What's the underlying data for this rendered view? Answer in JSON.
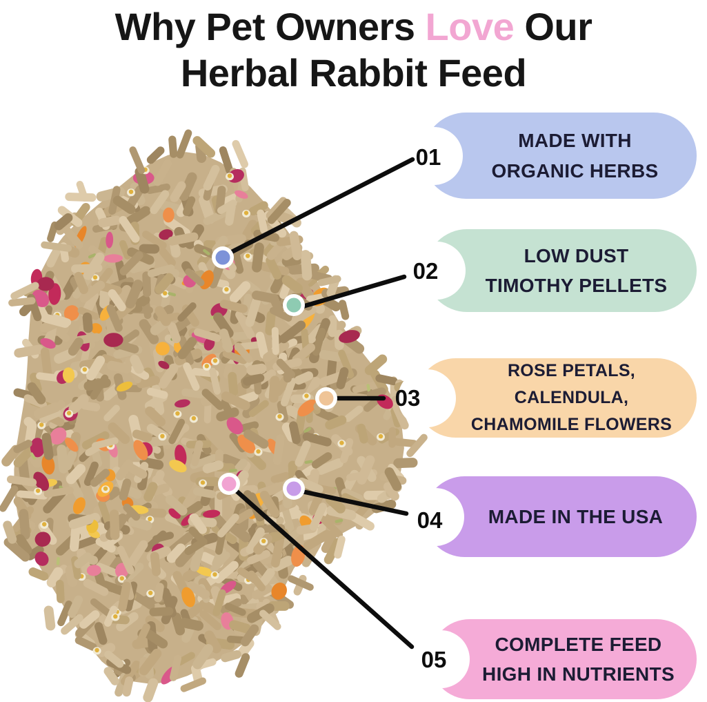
{
  "title": {
    "line1_pre": "Why Pet Owners",
    "line1_accent": "Love",
    "line1_post": "Our",
    "line2": "Herbal Rabbit Feed",
    "text_color": "#161616",
    "accent_color": "#f2a6d2"
  },
  "callouts": [
    {
      "number": "01",
      "line1": "MADE WITH",
      "line2": "ORGANIC HERBS",
      "pill_color": "#b9c7ee",
      "dot_color": "#7d92d8"
    },
    {
      "number": "02",
      "line1": "LOW DUST",
      "line2": "TIMOTHY PELLETS",
      "pill_color": "#c5e2d2",
      "dot_color": "#8ecbb2"
    },
    {
      "number": "03",
      "line1": "ROSE PETALS, CALENDULA,",
      "line2": "CHAMOMILE FLOWERS",
      "pill_color": "#f9d6a9",
      "dot_color": "#efc497"
    },
    {
      "number": "04",
      "line1": "MADE IN THE USA",
      "pill_color": "#c99cea",
      "dot_color": "#c79ce8"
    },
    {
      "number": "05",
      "line1": "COMPLETE FEED",
      "line2": "HIGH IN NUTRIENTS",
      "pill_color": "#f5abd7",
      "dot_color": "#f1a3d2"
    }
  ],
  "connector": {
    "line_color": "#0d0d0d",
    "ring_color": "#ffffff",
    "label_text_color": "#1c1c34"
  },
  "product_image": {
    "base_color": "#c7b08a",
    "pellet_colors": [
      "#c9b28c",
      "#bda577",
      "#d4c09d",
      "#b09871",
      "#decbaa",
      "#a68e66",
      "#cbb691",
      "#c1a87f",
      "#d0ba96",
      "#9e8660"
    ],
    "petal_red_colors": [
      "#c22a5a",
      "#a82950",
      "#d9588a",
      "#e87f9a",
      "#b52d5e"
    ],
    "petal_orange_colors": [
      "#f09c2e",
      "#e8862a",
      "#f7b13c",
      "#ef8f4a"
    ],
    "petal_yellow_colors": [
      "#f3c84f",
      "#edbe3b"
    ],
    "chamomile_petal_color": "#f1ead4",
    "chamomile_center_color": "#e0b13e",
    "herb_green_colors": [
      "#a9b36a",
      "#8fa05a",
      "#b9c077"
    ]
  }
}
